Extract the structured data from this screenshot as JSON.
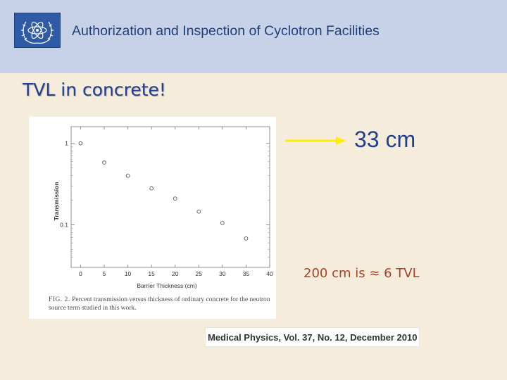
{
  "header": {
    "title": "Authorization and Inspection of Cyclotron Facilities",
    "logo_icon": "un-laurel-atom-icon",
    "background": "#c7d2e8",
    "logo_color": "#2f5aa6"
  },
  "slide": {
    "title": "TVL in concrete!",
    "value_label": "33 cm",
    "tvl_note": "200 cm is ≈ 6 TVL",
    "arrow_color": "#ffee00",
    "citation": "Medical Physics, Vol. 37, No. 12, December 2010"
  },
  "figure": {
    "caption_label": "FIG. 2.",
    "caption_text": "Percent transmission versus thickness of ordinary concrete for the neutron source term studied in this work."
  },
  "chart_data": {
    "type": "scatter",
    "title": "",
    "xlabel": "Barrier Thickness (cm)",
    "ylabel": "Transmission",
    "xlim": [
      -2,
      40
    ],
    "ylim": [
      0.03,
      1.6
    ],
    "yscale": "log",
    "xticks": [
      0,
      5,
      10,
      15,
      20,
      25,
      30,
      35,
      40
    ],
    "yticks": [
      {
        "value": 1,
        "label": "1"
      },
      {
        "value": 0.1,
        "label": "0.1"
      }
    ],
    "grid": false,
    "legend": "none",
    "series": [
      {
        "x": [
          0,
          5,
          10,
          15,
          20,
          25,
          30,
          35
        ],
        "y": [
          1.0,
          0.58,
          0.4,
          0.28,
          0.21,
          0.145,
          0.105,
          0.068
        ]
      }
    ]
  }
}
